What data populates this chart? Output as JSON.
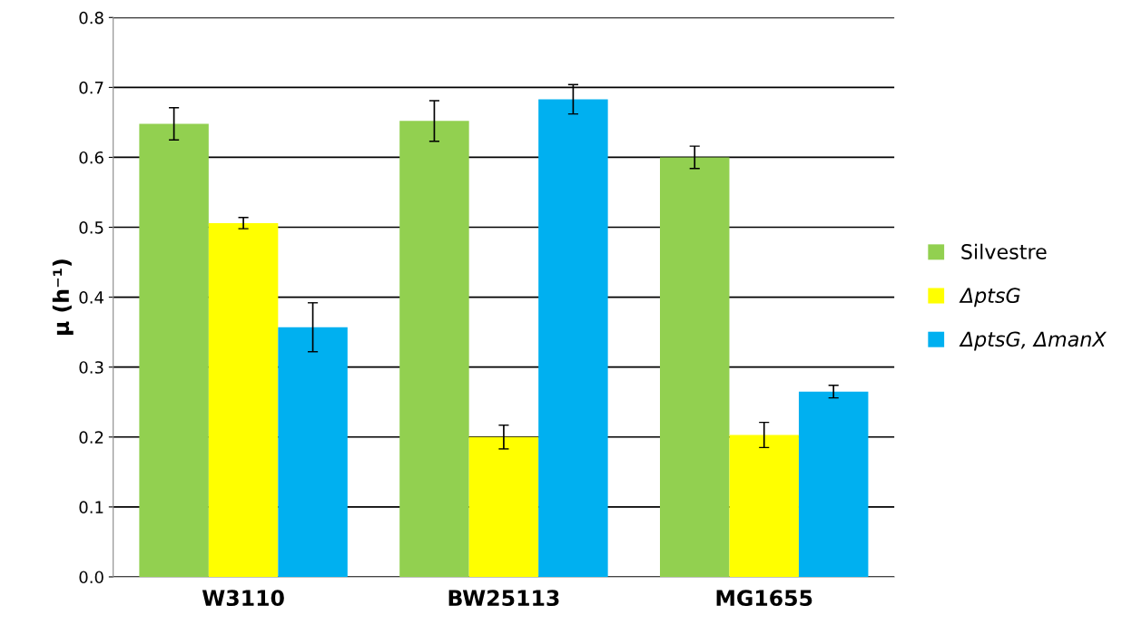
{
  "chart_data": {
    "type": "bar",
    "ylabel": "µ (h⁻¹)",
    "categories": [
      "W3110",
      "BW25113",
      "MG1655"
    ],
    "series": [
      {
        "name": "Silvestre",
        "color": "#92d050",
        "values": [
          0.648,
          0.652,
          0.6
        ],
        "errors": [
          0.023,
          0.029,
          0.016
        ]
      },
      {
        "name": "ΔptsG",
        "color": "#ffff00",
        "values": [
          0.506,
          0.2,
          0.203
        ],
        "errors": [
          0.008,
          0.017,
          0.018
        ]
      },
      {
        "name": "ΔptsG, ΔmanX",
        "color": "#00b0f0",
        "values": [
          0.357,
          0.683,
          0.265
        ],
        "errors": [
          0.035,
          0.021,
          0.009
        ]
      }
    ],
    "ylim": [
      0,
      0.8
    ],
    "yticks": [
      {
        "value": 0,
        "label": "0.0"
      },
      0.1,
      0.2,
      0.3,
      0.4,
      0.5,
      0.6,
      0.7,
      0.8
    ],
    "grid": "y",
    "legend": "right"
  }
}
